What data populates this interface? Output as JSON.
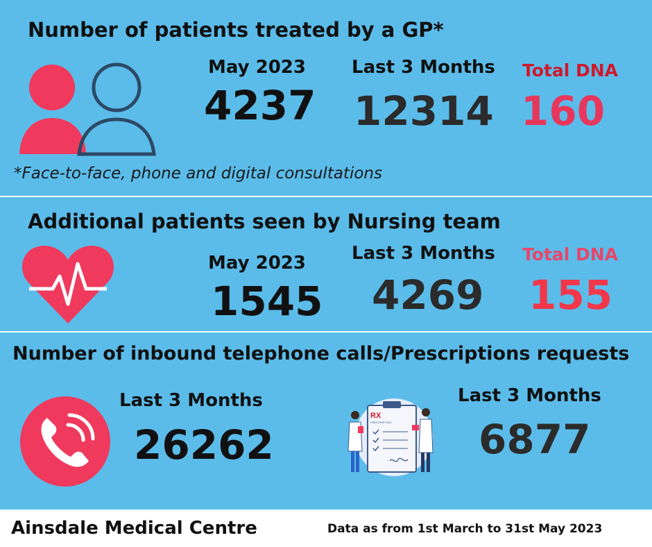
{
  "gp": {
    "title": "Number of patients treated by a GP*",
    "month_label": "May 2023",
    "month_value": "4237",
    "three_month_label": "Last 3 Months",
    "three_month_value": "12314",
    "dna_label": "Total DNA",
    "dna_value": "160",
    "footnote": "*Face-to-face, phone and digital consultations",
    "icon": "users-icon"
  },
  "nursing": {
    "title": "Additional patients seen by Nursing team",
    "month_label": "May 2023",
    "month_value": "1545",
    "three_month_label": "Last 3 Months",
    "three_month_value": "4269",
    "dna_label": "Total DNA",
    "dna_value": "155",
    "icon": "heartbeat-icon"
  },
  "calls": {
    "title": "Number of inbound telephone calls/Prescriptions requests",
    "calls_label": "Last 3 Months",
    "calls_value": "26262",
    "prescriptions_label": "Last 3 Months",
    "prescriptions_value": "6877",
    "calls_icon": "phone-icon",
    "prescriptions_icon": "prescription-clipboard-icon",
    "rx_text": "RX",
    "rx_subtext": "PRESCRIPTION"
  },
  "footer": {
    "practice_name": "Ainsdale Medical Centre",
    "data_note": "Data as from 1st March to 31st May 2023"
  },
  "colors": {
    "background": "#5bbcea",
    "accent_pink": "#ef3a5d",
    "dna_red": "#d0192c",
    "outline_navy": "#2c4a66"
  }
}
